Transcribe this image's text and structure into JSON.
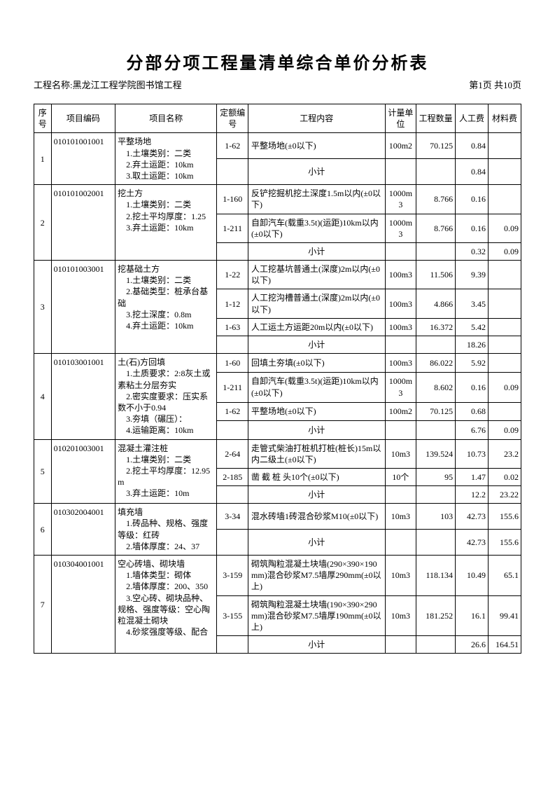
{
  "title": "分部分项工程量清单综合单价分析表",
  "project_label": "工程名称:黑龙江工程学院图书馆工程",
  "page_label": "第1页 共10页",
  "headers": {
    "seq": "序号",
    "code": "项目编码",
    "name": "项目名称",
    "quota": "定额编号",
    "desc": "工程内容",
    "unit": "计量单位",
    "qty": "工程数量",
    "labor": "人工费",
    "material": "材料费"
  },
  "subtotal_label": "小计",
  "items": [
    {
      "seq": "1",
      "code": "010101001001",
      "name": "平整场地\n　1.土壤类别：二类\n　2.弃土运距：10km\n　3.取土运距：10km",
      "rows": [
        {
          "quota": "1-62",
          "desc": "平整场地(±0以下)",
          "unit": "100m2",
          "qty": "70.125",
          "labor": "0.84",
          "material": ""
        }
      ],
      "sub_labor": "0.84",
      "sub_material": ""
    },
    {
      "seq": "2",
      "code": "010101002001",
      "name": "挖土方\n　1.土壤类别：二类\n　2.挖土平均厚度：1.25\n　3.弃土运距：10km",
      "rows": [
        {
          "quota": "1-160",
          "desc": "反铲挖掘机挖土深度1.5m以内(±0以下)",
          "unit": "1000m3",
          "qty": "8.766",
          "labor": "0.16",
          "material": ""
        },
        {
          "quota": "1-211",
          "desc": "自卸汽车(载重3.5t)(运距)10km以内(±0以下)",
          "unit": "1000m3",
          "qty": "8.766",
          "labor": "0.16",
          "material": "0.09"
        }
      ],
      "sub_labor": "0.32",
      "sub_material": "0.09"
    },
    {
      "seq": "3",
      "code": "010101003001",
      "name": "挖基础土方\n　1.土壤类别：二类\n　2.基础类型：桩承台基础\n　3.挖土深度：0.8m\n　4.弃土运距：10km",
      "rows": [
        {
          "quota": "1-22",
          "desc": "人工挖基坑普通土(深度)2m以内(±0以下)",
          "unit": "100m3",
          "qty": "11.506",
          "labor": "9.39",
          "material": ""
        },
        {
          "quota": "1-12",
          "desc": "人工挖沟槽普通土(深度)2m以内(±0以下)",
          "unit": "100m3",
          "qty": "4.866",
          "labor": "3.45",
          "material": ""
        },
        {
          "quota": "1-63",
          "desc": "人工运土方运距20m以内(±0以下)",
          "unit": "100m3",
          "qty": "16.372",
          "labor": "5.42",
          "material": ""
        }
      ],
      "sub_labor": "18.26",
      "sub_material": ""
    },
    {
      "seq": "4",
      "code": "010103001001",
      "name": "土(石)方回填\n　1.土质要求：2:8灰土或素粘土分层夯实\n　2.密实度要求：压实系数不小于0.94\n　3.夯填（碾压）：\n　4.运输距离：10km",
      "rows": [
        {
          "quota": "1-60",
          "desc": "回填土夯填(±0以下)",
          "unit": "100m3",
          "qty": "86.022",
          "labor": "5.92",
          "material": ""
        },
        {
          "quota": "1-211",
          "desc": "自卸汽车(载重3.5t)(运距)10km以内(±0以下)",
          "unit": "1000m3",
          "qty": "8.602",
          "labor": "0.16",
          "material": "0.09"
        },
        {
          "quota": "1-62",
          "desc": "平整场地(±0以下)",
          "unit": "100m2",
          "qty": "70.125",
          "labor": "0.68",
          "material": ""
        }
      ],
      "sub_labor": "6.76",
      "sub_material": "0.09"
    },
    {
      "seq": "5",
      "code": "010201003001",
      "name": "混凝土灌注桩\n　1.土壤类别：二类\n　2.挖土平均厚度：12.95m\n　3.弃土运距：10m",
      "rows": [
        {
          "quota": "2-64",
          "desc": "走管式柴油打桩机打桩(桩长)15m以内二级土(±0以下)",
          "unit": "10m3",
          "qty": "139.524",
          "labor": "10.73",
          "material": "23.2"
        },
        {
          "quota": "2-185",
          "desc": "凿 截 桩 头10个(±0以下)",
          "unit": "10个",
          "qty": "95",
          "labor": "1.47",
          "material": "0.02"
        }
      ],
      "sub_labor": "12.2",
      "sub_material": "23.22"
    },
    {
      "seq": "6",
      "code": "010302004001",
      "name": "填充墙\n　1.砖品种、规格、强度等级：红砖\n　2.墙体厚度：24、37",
      "rows": [
        {
          "quota": "3-34",
          "desc": "混水砖墙1砖混合砂浆M10(±0以下)",
          "unit": "10m3",
          "qty": "103",
          "labor": "42.73",
          "material": "155.6"
        }
      ],
      "sub_labor": "42.73",
      "sub_material": "155.6"
    },
    {
      "seq": "7",
      "code": "010304001001",
      "name": "空心砖墙、砌块墙\n　1.墙体类型：砌体\n　2.墙体厚度：200、350\n　3.空心砖、砌块品种、规格、强度等级：空心陶粒混凝土砌块\n　4.砂浆强度等级、配合",
      "rows": [
        {
          "quota": "3-159",
          "desc": "砌筑陶粒混凝土块墙(290×390×190mm)混合砂浆M7.5墙厚290mm(±0以上)",
          "unit": "10m3",
          "qty": "118.134",
          "labor": "10.49",
          "material": "65.1"
        },
        {
          "quota": "3-155",
          "desc": "砌筑陶粒混凝土块墙(190×390×290mm)混合砂浆M7.5墙厚190mm(±0以上)",
          "unit": "10m3",
          "qty": "181.252",
          "labor": "16.1",
          "material": "99.41"
        }
      ],
      "sub_labor": "26.6",
      "sub_material": "164.51"
    }
  ]
}
